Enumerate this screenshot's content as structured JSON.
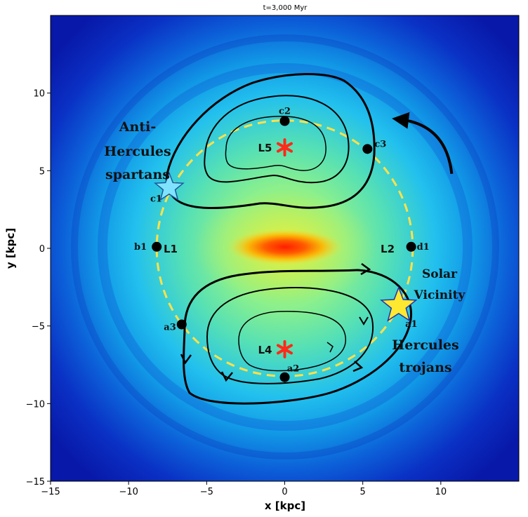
{
  "chart_data": {
    "type": "heatmap",
    "title": "t=3,000 Myr",
    "xlabel": "x [kpc]",
    "ylabel": "y [kpc]",
    "xlim": [
      -15,
      15
    ],
    "ylim": [
      -15,
      15
    ],
    "xticks": [
      -15,
      -10,
      -5,
      0,
      5,
      10
    ],
    "yticks": [
      -15,
      -10,
      -5,
      0,
      5,
      10
    ],
    "xtick_labels": [
      "−15",
      "−10",
      "−5",
      "0",
      "5",
      "10"
    ],
    "ytick_labels": [
      "−15",
      "−10",
      "−5",
      "0",
      "5",
      "10"
    ],
    "grid": false,
    "colormap": "jet",
    "corotation_radius_kpc": 8.2,
    "circle_color": "#ffe14a",
    "points": [
      {
        "id": "b1",
        "label": "b1",
        "x": -8.2,
        "y": 0.1
      },
      {
        "id": "d1",
        "label": "d1",
        "x": 8.1,
        "y": 0.1
      },
      {
        "id": "c2",
        "label": "c2",
        "x": 0.0,
        "y": 8.2
      },
      {
        "id": "c3",
        "label": "c3",
        "x": 5.3,
        "y": 6.4
      },
      {
        "id": "a2",
        "label": "a2",
        "x": 0.0,
        "y": -8.3
      },
      {
        "id": "a3",
        "label": "a3",
        "x": -6.6,
        "y": -4.9
      }
    ],
    "lagrange_points": [
      {
        "id": "L1",
        "label": "L1",
        "x": -6.5,
        "y": 0.0
      },
      {
        "id": "L2",
        "label": "L2",
        "x": 6.5,
        "y": 0.0
      },
      {
        "id": "L4",
        "label": "L4",
        "x": 0.0,
        "y": -6.5
      },
      {
        "id": "L5",
        "label": "L5",
        "x": 0.0,
        "y": 6.5
      }
    ],
    "stars": [
      {
        "id": "c1",
        "label": "c1",
        "x": -7.4,
        "y": 3.9,
        "color": "#7fe3ff"
      },
      {
        "id": "a1",
        "label": "a1",
        "x": 7.3,
        "y": -3.7,
        "color": "#ffe830"
      }
    ],
    "rotation_arrow": {
      "from": [
        10.7,
        4.8
      ],
      "to": [
        7.4,
        8.3
      ]
    }
  },
  "annotations": {
    "anti_hercules_line1": "Anti-",
    "anti_hercules_line2": "Hercules",
    "anti_hercules_line3": "spartans",
    "solar_line1": "Solar",
    "solar_line2": "Vicinity",
    "hercules_line1": "Hercules",
    "hercules_line2": "trojans"
  },
  "colors": {
    "star_marker": "#ff2a1a",
    "orbit": "#000000",
    "background_edge": "#0a1fc8"
  }
}
